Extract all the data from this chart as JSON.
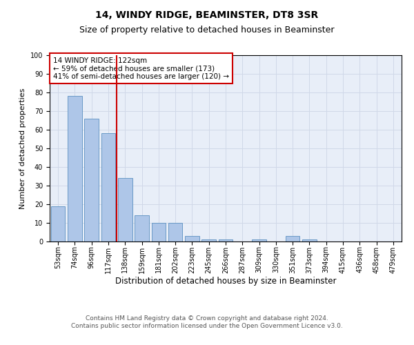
{
  "title": "14, WINDY RIDGE, BEAMINSTER, DT8 3SR",
  "subtitle": "Size of property relative to detached houses in Beaminster",
  "xlabel": "Distribution of detached houses by size in Beaminster",
  "ylabel": "Number of detached properties",
  "bar_labels": [
    "53sqm",
    "74sqm",
    "96sqm",
    "117sqm",
    "138sqm",
    "159sqm",
    "181sqm",
    "202sqm",
    "223sqm",
    "245sqm",
    "266sqm",
    "287sqm",
    "309sqm",
    "330sqm",
    "351sqm",
    "373sqm",
    "394sqm",
    "415sqm",
    "436sqm",
    "458sqm",
    "479sqm"
  ],
  "bar_values": [
    19,
    78,
    66,
    58,
    34,
    14,
    10,
    10,
    3,
    1,
    1,
    0,
    1,
    0,
    3,
    1,
    0,
    0,
    0,
    0,
    0
  ],
  "bar_color": "#aec6e8",
  "bar_edge_color": "#5a8fc0",
  "vline_x": 3.5,
  "vline_color": "#cc0000",
  "annotation_text": "14 WINDY RIDGE: 122sqm\n← 59% of detached houses are smaller (173)\n41% of semi-detached houses are larger (120) →",
  "annotation_box_color": "#ffffff",
  "annotation_box_edge": "#cc0000",
  "ylim": [
    0,
    100
  ],
  "yticks": [
    0,
    10,
    20,
    30,
    40,
    50,
    60,
    70,
    80,
    90,
    100
  ],
  "grid_color": "#d0d8e8",
  "background_color": "#e8eef8",
  "footer_text": "Contains HM Land Registry data © Crown copyright and database right 2024.\nContains public sector information licensed under the Open Government Licence v3.0.",
  "title_fontsize": 10,
  "subtitle_fontsize": 9,
  "xlabel_fontsize": 8.5,
  "ylabel_fontsize": 8,
  "tick_fontsize": 7,
  "annotation_fontsize": 7.5,
  "footer_fontsize": 6.5
}
